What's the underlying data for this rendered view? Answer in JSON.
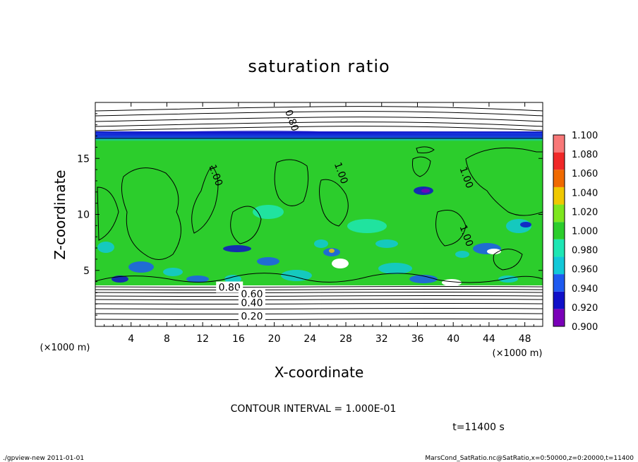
{
  "chart_data": {
    "type": "heatmap",
    "title": "saturation ratio",
    "xlabel": "X-coordinate",
    "ylabel": "Z-coordinate",
    "x_unit": "(×1000 m)",
    "y_unit": "(×1000 m)",
    "xlim": [
      0,
      50
    ],
    "ylim": [
      0,
      20
    ],
    "x_ticks": [
      4,
      8,
      12,
      16,
      20,
      24,
      28,
      32,
      36,
      40,
      44,
      48
    ],
    "y_ticks": [
      5,
      10,
      15
    ],
    "colorbar": {
      "levels": [
        0.9,
        0.92,
        0.94,
        0.96,
        0.98,
        1.0,
        1.02,
        1.04,
        1.06,
        1.08,
        1.1
      ],
      "labels": [
        "0.900",
        "0.920",
        "0.940",
        "0.960",
        "0.980",
        "1.000",
        "1.020",
        "1.040",
        "1.060",
        "1.080",
        "1.100"
      ],
      "colors": [
        "#7a00b8",
        "#1010c8",
        "#1e5af0",
        "#12c8d8",
        "#1ee6b4",
        "#2ccd2c",
        "#7ee61e",
        "#f0c800",
        "#f06a00",
        "#f02828",
        "#f87878"
      ]
    },
    "contour_labels": [
      {
        "value": "0.80",
        "x": 22,
        "z": 18.4
      },
      {
        "value": "0.80",
        "x": 15,
        "z": 3.5
      },
      {
        "value": "0.60",
        "x": 17.5,
        "z": 2.9
      },
      {
        "value": "0.40",
        "x": 17.5,
        "z": 2.1
      },
      {
        "value": "0.20",
        "x": 17.5,
        "z": 0.9
      },
      {
        "value": "1.00",
        "x": 13.5,
        "z": 13.5
      },
      {
        "value": "1.00",
        "x": 27.5,
        "z": 13.7
      },
      {
        "value": "1.00",
        "x": 41.5,
        "z": 13.3
      },
      {
        "value": "1.00",
        "x": 41.5,
        "z": 8.1
      }
    ],
    "contour_interval_text": "CONTOUR INTERVAL = 1.000E-01",
    "time_text": "t=11400 s"
  },
  "footer": {
    "left": "./gpview-new   2011-01-01",
    "right": "MarsCond_SatRatio.nc@SatRatio,x=0:50000,z=0:20000,t=11400"
  }
}
